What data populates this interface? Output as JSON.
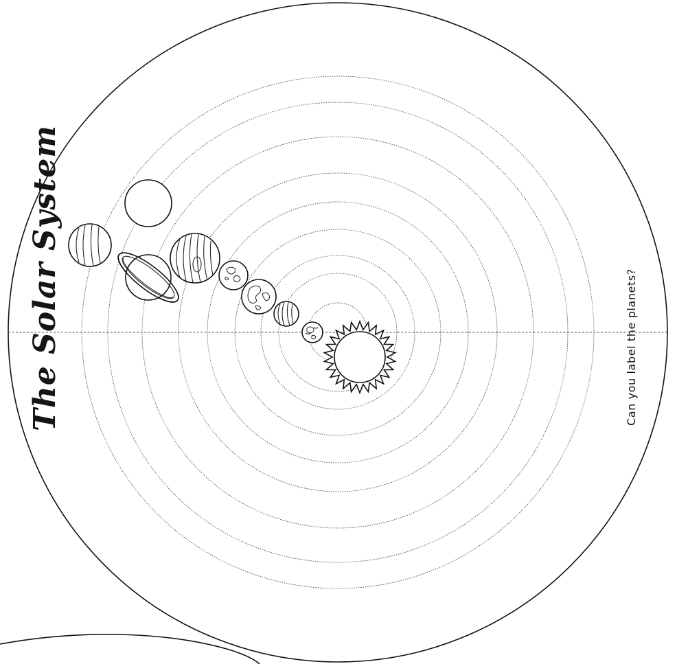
{
  "title": "The Solar System",
  "question": "Can you label the planets?"
}
